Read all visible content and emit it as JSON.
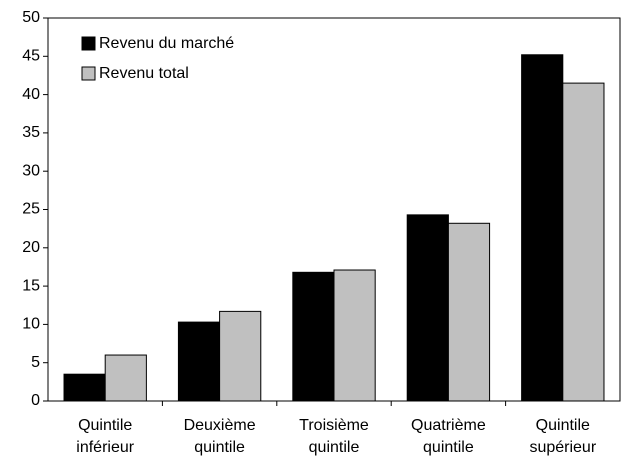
{
  "chart_data": {
    "type": "bar",
    "categories": [
      "Quintile\ninférieur",
      "Deuxième\nquintile",
      "Troisième\nquintile",
      "Quatrième\nquintile",
      "Quintile\nsupérieur"
    ],
    "series": [
      {
        "name": "Revenu du marché",
        "color": "#000000",
        "values": [
          3.5,
          10.3,
          16.8,
          24.3,
          45.2
        ]
      },
      {
        "name": "Revenu total",
        "color": "#c0c0c0",
        "values": [
          6.0,
          11.7,
          17.1,
          23.2,
          41.5
        ]
      }
    ],
    "ylim": [
      0,
      50
    ],
    "yticks": [
      0,
      5,
      10,
      15,
      20,
      25,
      30,
      35,
      40,
      45,
      50
    ],
    "grid": false,
    "legend": "upper left"
  }
}
